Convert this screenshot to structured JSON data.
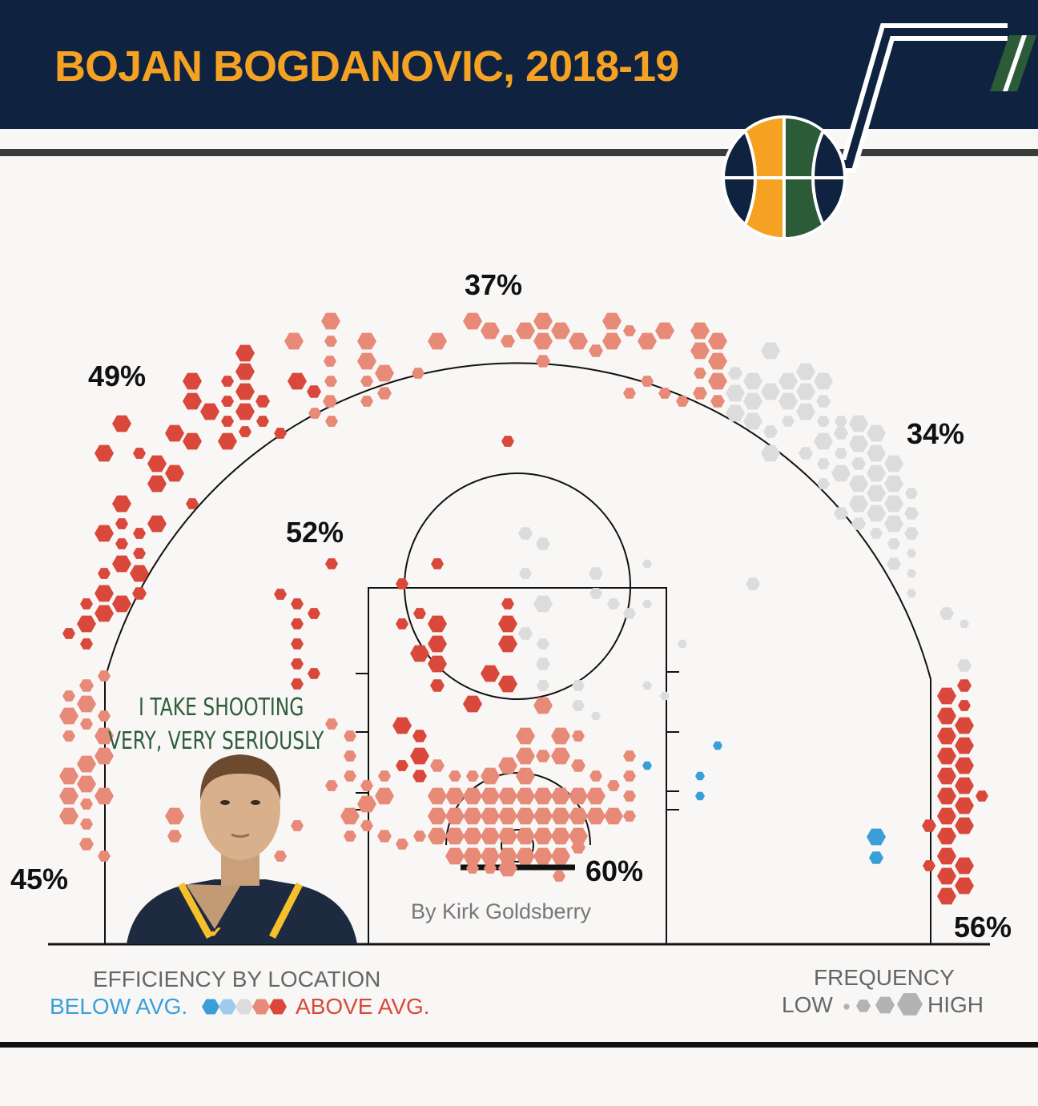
{
  "title": "BOJAN BOGDANOVIC, 2018-19",
  "byline": "By Kirk Goldsberry",
  "quote": {
    "line1": "I TAKE SHOOTING",
    "line2": "VERY, VERY SERIOUSLY"
  },
  "icons": {
    "logo": "utah-jazz-note-logo",
    "photo": "player-headshot"
  },
  "colors": {
    "header_bg": "#0f2341",
    "title": "#f5a223",
    "below_strong": "#3a9fd8",
    "below_light": "#9ccbec",
    "average": "#dcdcdc",
    "above_light": "#e88a78",
    "above_strong": "#d9483b"
  },
  "legend": {
    "efficiency_title": "EFFICIENCY BY LOCATION",
    "below_label": "BELOW AVG.",
    "above_label": "ABOVE AVG.",
    "frequency_title": "FREQUENCY",
    "low_label": "LOW",
    "high_label": "HIGH"
  },
  "chart_data": {
    "type": "hexbin shot chart",
    "title": "BOJAN BOGDANOVIC, 2018-19",
    "zones": [
      {
        "zone": "left corner 3",
        "fg_pct": "45%"
      },
      {
        "zone": "left wing 3",
        "fg_pct": "49%"
      },
      {
        "zone": "top of key 3",
        "fg_pct": "37%"
      },
      {
        "zone": "right wing 3",
        "fg_pct": "34%"
      },
      {
        "zone": "right corner 3",
        "fg_pct": "56%"
      },
      {
        "zone": "mid-range",
        "fg_pct": "52%"
      },
      {
        "zone": "restricted area",
        "fg_pct": "60%"
      }
    ],
    "efficiency_scale": [
      "below avg. (strong)",
      "below avg.",
      "average",
      "above avg.",
      "above avg. (strong)"
    ],
    "frequency_scale": [
      "low",
      "high"
    ]
  }
}
